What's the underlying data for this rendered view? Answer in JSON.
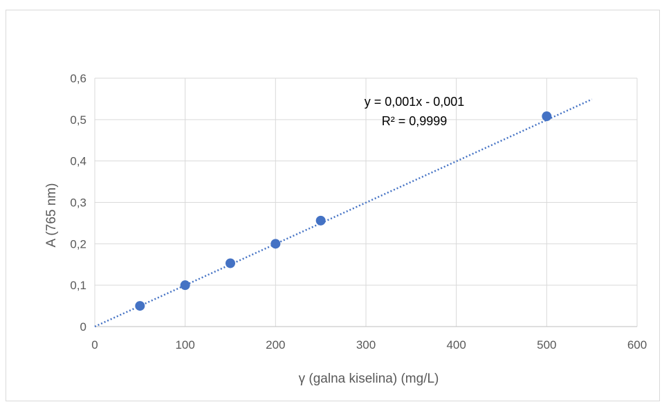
{
  "chart_data": {
    "type": "scatter",
    "xlabel": "γ (galna kiselina) (mg/L)",
    "ylabel": "A (765 nm)",
    "xlim": [
      0,
      600
    ],
    "ylim": [
      0,
      0.6
    ],
    "x_ticks": [
      0,
      100,
      200,
      300,
      400,
      500,
      600
    ],
    "y_ticks": [
      0,
      0.1,
      0.2,
      0.3,
      0.4,
      0.5,
      0.6
    ],
    "x_tick_labels": [
      "0",
      "100",
      "200",
      "300",
      "400",
      "500",
      "600"
    ],
    "y_tick_labels": [
      "0",
      "0,1",
      "0,2",
      "0,3",
      "0,4",
      "0,5",
      "0,6"
    ],
    "grid": true,
    "series": [
      {
        "x": [
          50,
          100,
          150,
          200,
          250,
          500
        ],
        "y": [
          0.05,
          0.1,
          0.153,
          0.2,
          0.256,
          0.508
        ],
        "color": "#4472c4"
      }
    ],
    "trendline": {
      "type": "linear",
      "slope": 0.001,
      "intercept": -0.001,
      "x_range": [
        0,
        550
      ],
      "style": "dotted",
      "color": "#4472c4",
      "equation": "y = 0,001x - 0,001",
      "r_squared": "R² = 0,9999"
    }
  }
}
